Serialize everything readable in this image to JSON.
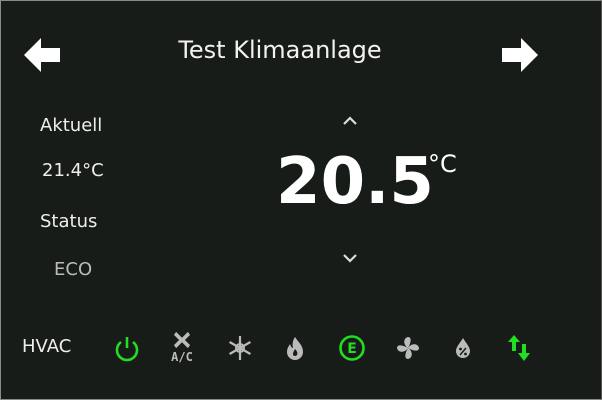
{
  "header": {
    "title": "Test Klimaanlage",
    "prev_icon": "arrow-left-icon",
    "next_icon": "arrow-right-icon"
  },
  "left": {
    "current_label": "Aktuell",
    "current_value": "21.4°C",
    "status_label": "Status",
    "status_value": "ECO"
  },
  "setpoint": {
    "value": "20.5",
    "unit": "°C",
    "up_icon": "chevron-up-icon",
    "down_icon": "chevron-down-icon"
  },
  "hvac": {
    "label": "HVAC",
    "active_color": "#22dd22",
    "inactive_color": "#bbbbbb",
    "modes": [
      {
        "icon": "power-icon",
        "active": true
      },
      {
        "icon": "ac-fan-icon",
        "active": false,
        "text": "A/C"
      },
      {
        "icon": "snowflake-icon",
        "active": false
      },
      {
        "icon": "flame-icon",
        "active": false
      },
      {
        "icon": "eco-icon",
        "active": true,
        "text": "E"
      },
      {
        "icon": "fan-icon",
        "active": false
      },
      {
        "icon": "dry-icon",
        "active": false
      },
      {
        "icon": "heat-cool-icon",
        "active": true
      }
    ]
  }
}
